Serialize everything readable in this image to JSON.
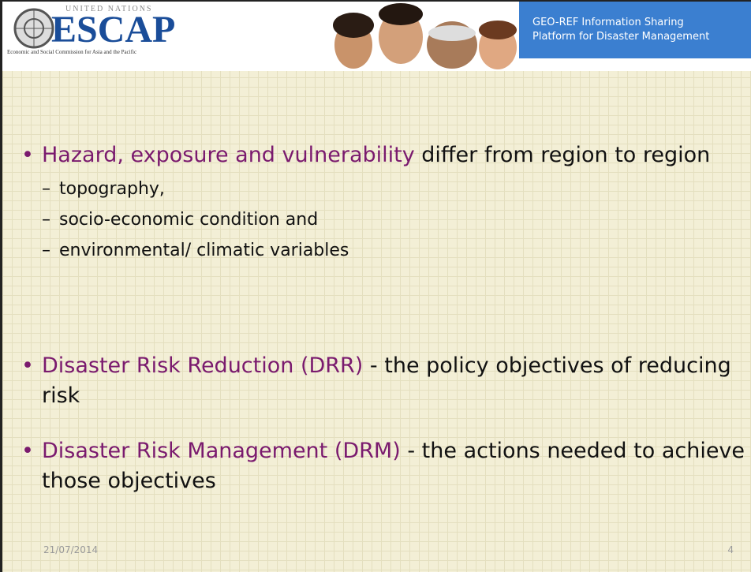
{
  "header": {
    "org_small": "UNITED NATIONS",
    "org": "ESCAP",
    "org_full": "Economic and Social Commission for Asia and the Pacific",
    "platform": [
      "GEO-REF Information Sharing",
      "Platform for Disaster Management"
    ]
  },
  "bullets": [
    {
      "highlight": "Hazard, exposure and vulnerability",
      "text": " differ from region to region",
      "subitems": [
        "topography,",
        "socio-economic condition and",
        "environmental/ climatic variables"
      ]
    },
    {
      "highlight": "Disaster Risk Reduction (DRR)",
      "text": " - the policy objectives of reducing risk",
      "subitems": []
    },
    {
      "highlight": "Disaster Risk Management (DRM)",
      "text": " - the actions needed to achieve those objectives",
      "subitems": []
    }
  ],
  "footer": {
    "date": "21/07/2014",
    "page": "4"
  }
}
